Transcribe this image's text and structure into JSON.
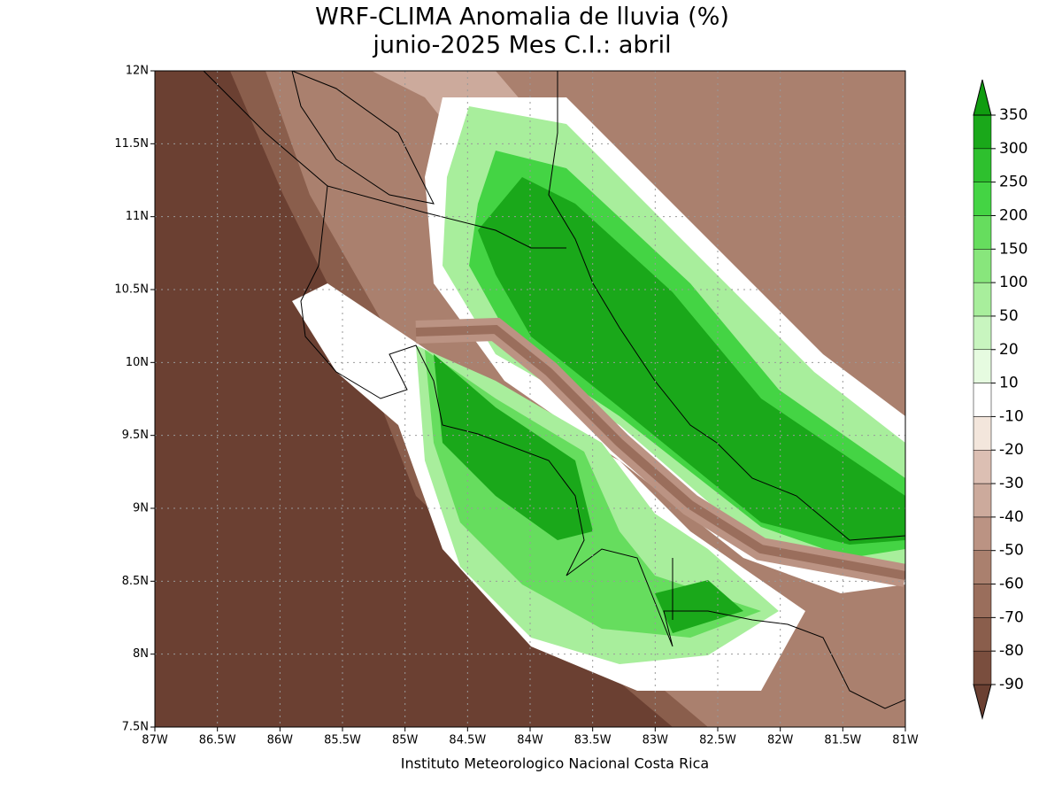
{
  "title": [
    "WRF-CLIMA Anomalia de lluvia (%)",
    "junio-2025 Mes C.I.: abril"
  ],
  "credit": "Instituto Meteorologico Nacional Costa Rica",
  "map": {
    "xlim": [
      -87,
      -81
    ],
    "ylim": [
      7.5,
      12
    ],
    "xticks": [
      {
        "value": -87,
        "label": "87W"
      },
      {
        "value": -86.5,
        "label": "86.5W"
      },
      {
        "value": -86,
        "label": "86W"
      },
      {
        "value": -85.5,
        "label": "85.5W"
      },
      {
        "value": -85,
        "label": "85W"
      },
      {
        "value": -84.5,
        "label": "84.5W"
      },
      {
        "value": -84,
        "label": "84W"
      },
      {
        "value": -83.5,
        "label": "83.5W"
      },
      {
        "value": -83,
        "label": "83W"
      },
      {
        "value": -82.5,
        "label": "82.5W"
      },
      {
        "value": -82,
        "label": "82W"
      },
      {
        "value": -81.5,
        "label": "81.5W"
      },
      {
        "value": -81,
        "label": "81W"
      }
    ],
    "yticks": [
      {
        "value": 7.5,
        "label": "7.5N"
      },
      {
        "value": 8,
        "label": "8N"
      },
      {
        "value": 8.5,
        "label": "8.5N"
      },
      {
        "value": 9,
        "label": "9N"
      },
      {
        "value": 9.5,
        "label": "9.5N"
      },
      {
        "value": 10,
        "label": "10N"
      },
      {
        "value": 10.5,
        "label": "10.5N"
      },
      {
        "value": 11,
        "label": "11N"
      },
      {
        "value": 11.5,
        "label": "11.5N"
      },
      {
        "value": 12,
        "label": "12N"
      }
    ],
    "grid": true
  },
  "colorbar": {
    "levels": [
      -90,
      -80,
      -70,
      -60,
      -50,
      -40,
      -30,
      -20,
      -10,
      10,
      20,
      50,
      100,
      150,
      200,
      250,
      300,
      350
    ],
    "colors": [
      "#6b4032",
      "#7a4e3e",
      "#8a5e4c",
      "#9a6e5c",
      "#aa806e",
      "#bb9383",
      "#ccaa9c",
      "#dcbfb3",
      "#f3e6dc",
      "#ffffff",
      "#e6fbe0",
      "#c8f5bf",
      "#a8ee9c",
      "#88e67c",
      "#66dd5e",
      "#44d444",
      "#2ec02e",
      "#1aa81a",
      "#109c10"
    ]
  }
}
